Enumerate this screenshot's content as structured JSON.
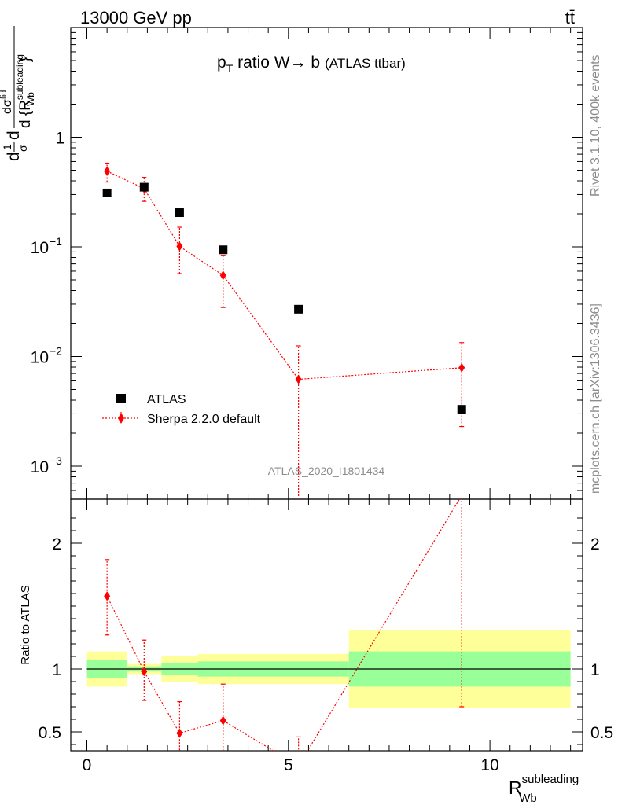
{
  "header": {
    "left": "13000 GeV pp",
    "right": "tt̄"
  },
  "side_labels": {
    "rivet": "Rivet 3.1.10,  400k events",
    "mcplots": "mcplots.cern.ch [arXiv:1306.3436]"
  },
  "watermark": "ATLAS_2020_I1801434",
  "main_title": {
    "p": "p",
    "sub": "T",
    "rest": " ratio W→ b",
    "small": "(ATLAS ttbar)"
  },
  "y_label": {
    "d1": "d",
    "sigma_over": "1",
    "sigma": "σ",
    "d2": "d",
    "numer": "dσ",
    "numer_sup": "fid",
    "denom": "d {R",
    "denom_sup": "subleading",
    "denom_sub": "Wb",
    "close": "}"
  },
  "ratio_ylabel": "Ratio to ATLAS",
  "x_label": {
    "main": "R",
    "sup": "subleading",
    "sub": "Wb"
  },
  "legend": [
    {
      "label": "ATLAS",
      "color": "#000000",
      "marker": "square"
    },
    {
      "label": "Sherpa 2.2.0 default",
      "color": "#ff0000",
      "marker": "diamond"
    }
  ],
  "colors": {
    "data": "#000000",
    "mc": "#ff0000",
    "band_inner": "#99ff99",
    "band_outer": "#ffff99"
  },
  "chart_data": [
    {
      "type": "scatter",
      "yscale": "log",
      "xlim": [
        -0.4,
        12.3
      ],
      "ylim": [
        0.0005,
        10
      ],
      "ytick_labels": [
        {
          "value": 1,
          "base": "1",
          "exp": ""
        },
        {
          "value": 0.1,
          "base": "10",
          "exp": "−1"
        },
        {
          "value": 0.01,
          "base": "10",
          "exp": "−2"
        },
        {
          "value": 0.001,
          "base": "10",
          "exp": "−3"
        }
      ],
      "series": [
        {
          "name": "ATLAS",
          "x": [
            0.5,
            1.42,
            2.3,
            3.38,
            5.25,
            9.3
          ],
          "y": [
            0.31,
            0.35,
            0.205,
            0.094,
            0.027,
            0.0033
          ]
        },
        {
          "name": "Sherpa 2.2.0 default",
          "x": [
            0.5,
            1.42,
            2.3,
            3.38,
            5.25,
            9.3
          ],
          "y": [
            0.49,
            0.34,
            0.101,
            0.055,
            0.0062,
            0.0079
          ],
          "yerr_low": [
            0.39,
            0.26,
            0.057,
            0.028,
            0.0004,
            0.0023
          ],
          "yerr_high": [
            0.58,
            0.43,
            0.151,
            0.083,
            0.0125,
            0.0134
          ]
        }
      ]
    },
    {
      "type": "line",
      "xlim": [
        -0.4,
        12.3
      ],
      "ylim": [
        0.35,
        2.35
      ],
      "yticks": [
        0.5,
        1,
        2
      ],
      "ytick_labels": [
        "0.5",
        "1",
        "2"
      ],
      "xticks": [
        0,
        5,
        10
      ],
      "xtick_labels": [
        "0",
        "5",
        "10"
      ],
      "bands": [
        {
          "x0": 0.0,
          "x1": 1.0,
          "inner": [
            0.93,
            1.07
          ],
          "outer": [
            0.86,
            1.14
          ]
        },
        {
          "x0": 1.0,
          "x1": 1.85,
          "inner": [
            0.98,
            1.02
          ],
          "outer": [
            0.96,
            1.04
          ]
        },
        {
          "x0": 1.85,
          "x1": 2.75,
          "inner": [
            0.95,
            1.05
          ],
          "outer": [
            0.9,
            1.1
          ]
        },
        {
          "x0": 2.75,
          "x1": 6.5,
          "inner": [
            0.94,
            1.06
          ],
          "outer": [
            0.88,
            1.12
          ]
        },
        {
          "x0": 6.5,
          "x1": 12.0,
          "inner": [
            0.86,
            1.14
          ],
          "outer": [
            0.69,
            1.31
          ]
        }
      ],
      "series": [
        {
          "name": "Sherpa 2.2.0 default",
          "x": [
            0.5,
            1.42,
            2.3,
            3.38,
            5.25,
            9.3
          ],
          "y": [
            1.58,
            0.98,
            0.49,
            0.59,
            0.23,
            2.38
          ],
          "yerr_low": [
            1.27,
            0.75,
            0.28,
            0.3,
            0.01,
            0.7
          ],
          "yerr_high": [
            1.87,
            1.23,
            0.74,
            0.88,
            0.46,
            4.0
          ]
        }
      ]
    }
  ]
}
